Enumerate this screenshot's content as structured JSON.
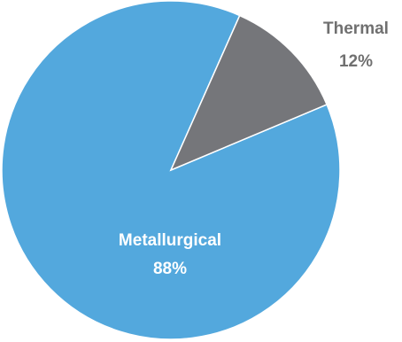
{
  "chart_data": {
    "type": "pie",
    "slices": [
      {
        "label": "Metallurgical",
        "value": 88,
        "value_label": "88%",
        "color": "#53a8dd"
      },
      {
        "label": "Thermal",
        "value": 12,
        "value_label": "12%",
        "color": "#75767a"
      }
    ],
    "colors": {
      "metallurgical_label": "#ffffff",
      "thermal_label": "#707070"
    }
  }
}
